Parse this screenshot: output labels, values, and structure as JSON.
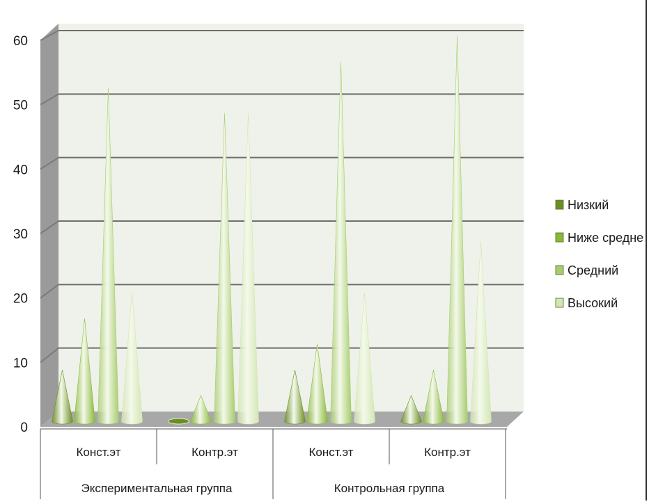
{
  "chart_data": {
    "type": "bar",
    "style": "3d-cone",
    "groups": [
      {
        "label": "Экспериментальная группа",
        "categories": [
          "Конст.эт",
          "Контр.эт"
        ]
      },
      {
        "label": "Контрольная группа",
        "categories": [
          "Конст.эт",
          "Контр.эт"
        ]
      }
    ],
    "categories": [
      "Конст.эт",
      "Контр.эт",
      "Конст.эт",
      "Контр.эт"
    ],
    "series": [
      {
        "name": "Низкий",
        "color": "#6b8e23",
        "values": [
          8,
          0,
          8,
          4
        ]
      },
      {
        "name": "Ниже средне",
        "color": "#8ab83a",
        "values": [
          16,
          4,
          12,
          8
        ]
      },
      {
        "name": "Средний",
        "color": "#a8cc6e",
        "values": [
          52,
          48,
          56,
          60
        ]
      },
      {
        "name": "Высокий",
        "color": "#d3e6b5",
        "values": [
          20,
          48,
          20,
          28
        ]
      }
    ],
    "ylim": [
      0,
      60
    ],
    "yticks": [
      "0",
      "10",
      "20",
      "30",
      "40",
      "50",
      "60"
    ],
    "grid": true,
    "legend_position": "right",
    "title": "",
    "xlabel": "",
    "ylabel": ""
  }
}
